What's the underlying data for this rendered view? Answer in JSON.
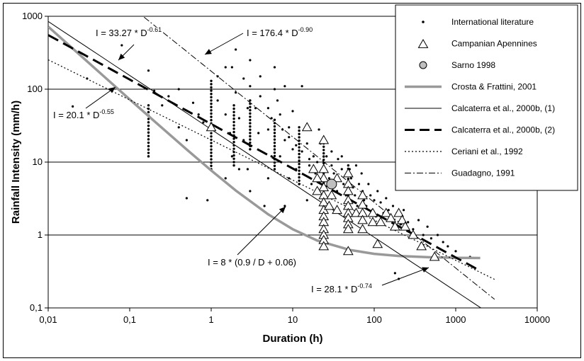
{
  "chart_data": {
    "type": "scatter",
    "x_scale": "log",
    "y_scale": "log",
    "xlabel": "Duration (h)",
    "ylabel": "Rainfall Intensity (mm/h)",
    "xlim": [
      0.01,
      10000
    ],
    "ylim": [
      0.1,
      1000
    ],
    "x_ticks": [
      0.01,
      0.1,
      1,
      10,
      100,
      1000,
      10000
    ],
    "x_tick_labels": [
      "0,01",
      "0,1",
      "1",
      "10",
      "100",
      "1000",
      "10000"
    ],
    "y_ticks": [
      0.1,
      1,
      10,
      100,
      1000
    ],
    "y_tick_labels": [
      "0,1",
      "1",
      "10",
      "100",
      "1000"
    ],
    "grid": "horizontal major lines",
    "legend_position": "top-right",
    "legend": [
      {
        "label": "International literature",
        "marker": "dot"
      },
      {
        "label": "Campanian Apennines",
        "marker": "triangle"
      },
      {
        "label": "Sarno 1998",
        "marker": "circle-gray"
      },
      {
        "label": "Crosta & Frattini, 2001",
        "marker": "line-gray-thick"
      },
      {
        "label": "Calcaterra et al., 2000b, (1)",
        "marker": "line-thin"
      },
      {
        "label": "Calcaterra et al., 2000b, (2)",
        "marker": "line-dashed-thick"
      },
      {
        "label": "Ceriani et al., 1992",
        "marker": "line-dotted"
      },
      {
        "label": "Guadagno, 1991",
        "marker": "line-dashdot"
      }
    ],
    "series": [
      {
        "name": "Crosta & Frattini, 2001",
        "formula": "I = 8 * (0.9 / D + 0.06)",
        "x": [
          0.01,
          0.02,
          0.05,
          0.1,
          0.2,
          0.5,
          1,
          2,
          5,
          10,
          20,
          50,
          100,
          200,
          500,
          1000,
          2000
        ],
        "color": "#999999"
      },
      {
        "name": "Calcaterra et al., 2000b, (1)",
        "formula": "I = 28.1 * D^-0.74",
        "x_range": [
          0.01,
          3000
        ],
        "coef": 28.1,
        "exp": -0.74
      },
      {
        "name": "Calcaterra et al., 2000b, (2)",
        "formula": "I = 33.27 * D^-0.61",
        "x_range": [
          0.01,
          2000
        ],
        "coef": 33.27,
        "exp": -0.61
      },
      {
        "name": "Ceriani et al., 1992",
        "formula": "I = 20.1 * D^-0.55",
        "x_range": [
          0.01,
          3000
        ],
        "coef": 20.1,
        "exp": -0.55
      },
      {
        "name": "Guadagno, 1991",
        "formula": "I = 176.4 * D^-0.90",
        "x_range": [
          0.15,
          3000
        ],
        "coef": 176.4,
        "exp": -0.9
      }
    ],
    "sarno_point": {
      "x": 30,
      "y": 5
    },
    "campanian_points": [
      [
        1,
        30
      ],
      [
        15,
        30
      ],
      [
        24,
        20
      ],
      [
        24,
        8
      ],
      [
        24,
        6
      ],
      [
        24,
        4.5
      ],
      [
        24,
        3.5
      ],
      [
        24,
        2.8
      ],
      [
        24,
        2.2
      ],
      [
        24,
        1.8
      ],
      [
        24,
        1.5
      ],
      [
        24,
        1.2
      ],
      [
        24,
        1
      ],
      [
        24,
        0.85
      ],
      [
        24,
        0.7
      ],
      [
        18,
        8
      ],
      [
        20,
        6
      ],
      [
        20,
        4
      ],
      [
        28,
        2.5
      ],
      [
        30,
        3.5
      ],
      [
        35,
        6
      ],
      [
        35,
        2.2
      ],
      [
        48,
        7
      ],
      [
        48,
        5
      ],
      [
        48,
        4
      ],
      [
        48,
        3
      ],
      [
        48,
        2.5
      ],
      [
        48,
        2
      ],
      [
        48,
        1.7
      ],
      [
        48,
        1.4
      ],
      [
        48,
        1.2
      ],
      [
        48,
        0.6
      ],
      [
        60,
        2
      ],
      [
        72,
        3.5
      ],
      [
        72,
        2.6
      ],
      [
        72,
        2
      ],
      [
        72,
        1.6
      ],
      [
        72,
        1.2
      ],
      [
        96,
        2
      ],
      [
        96,
        1.5
      ],
      [
        110,
        0.75
      ],
      [
        120,
        1.5
      ],
      [
        140,
        2
      ],
      [
        160,
        1.7
      ],
      [
        180,
        1.3
      ],
      [
        200,
        2
      ],
      [
        220,
        1.6
      ],
      [
        240,
        1.3
      ],
      [
        300,
        1
      ],
      [
        380,
        0.7
      ],
      [
        550,
        0.5
      ]
    ],
    "international_columns": [
      {
        "x": 1,
        "ymin": 8,
        "ymax": 130
      },
      {
        "x": 1.9,
        "ymin": 9,
        "ymax": 60
      },
      {
        "x": 3,
        "ymin": 15,
        "ymax": 70
      },
      {
        "x": 6,
        "ymin": 8,
        "ymax": 38
      },
      {
        "x": 12,
        "ymin": 5,
        "ymax": 30
      },
      {
        "x": 24,
        "ymin": 0.8,
        "ymax": 20
      },
      {
        "x": 48,
        "ymin": 1.5,
        "ymax": 9
      },
      {
        "x": 0.17,
        "ymin": 12,
        "ymax": 60
      }
    ],
    "international_points": [
      [
        0.02,
        58
      ],
      [
        0.03,
        140
      ],
      [
        0.05,
        40
      ],
      [
        0.08,
        400
      ],
      [
        0.17,
        180
      ],
      [
        0.17,
        12
      ],
      [
        0.2,
        95
      ],
      [
        0.25,
        60
      ],
      [
        0.3,
        80
      ],
      [
        0.4,
        30
      ],
      [
        0.5,
        20
      ],
      [
        0.5,
        3.2
      ],
      [
        0.6,
        65
      ],
      [
        0.7,
        45
      ],
      [
        0.8,
        35
      ],
      [
        1.2,
        150
      ],
      [
        1.5,
        200
      ],
      [
        1.5,
        45
      ],
      [
        1.7,
        25
      ],
      [
        1.8,
        12
      ],
      [
        2,
        350
      ],
      [
        2,
        90
      ],
      [
        2.2,
        40
      ],
      [
        2.5,
        20
      ],
      [
        2.5,
        140
      ],
      [
        2.8,
        8
      ],
      [
        3,
        110
      ],
      [
        3.5,
        55
      ],
      [
        3.8,
        25
      ],
      [
        4,
        80
      ],
      [
        4.5,
        2.5
      ],
      [
        5,
        55
      ],
      [
        5,
        28
      ],
      [
        5.5,
        12
      ],
      [
        6,
        100
      ],
      [
        6.5,
        70
      ],
      [
        7,
        12
      ],
      [
        7,
        45
      ],
      [
        8,
        20
      ],
      [
        8,
        110
      ],
      [
        9,
        6
      ],
      [
        9,
        30
      ],
      [
        10,
        15
      ],
      [
        10,
        50
      ],
      [
        11,
        8
      ],
      [
        13,
        110
      ],
      [
        15,
        18
      ],
      [
        15,
        3
      ],
      [
        16,
        9
      ],
      [
        17,
        5
      ],
      [
        18,
        12
      ],
      [
        19,
        7
      ],
      [
        20,
        4
      ],
      [
        21,
        28
      ],
      [
        22,
        18
      ],
      [
        26,
        12
      ],
      [
        28,
        6
      ],
      [
        30,
        9
      ],
      [
        32,
        7
      ],
      [
        35,
        4
      ],
      [
        36,
        11
      ],
      [
        40,
        8
      ],
      [
        42,
        5
      ],
      [
        45,
        3.5
      ],
      [
        50,
        8
      ],
      [
        52,
        6
      ],
      [
        55,
        4.5
      ],
      [
        58,
        3.5
      ],
      [
        60,
        9
      ],
      [
        62,
        2.5
      ],
      [
        65,
        5
      ],
      [
        70,
        7
      ],
      [
        72,
        4
      ],
      [
        75,
        3
      ],
      [
        80,
        2.5
      ],
      [
        85,
        5
      ],
      [
        90,
        3.5
      ],
      [
        95,
        2.2
      ],
      [
        100,
        3
      ],
      [
        105,
        1.8
      ],
      [
        110,
        4
      ],
      [
        120,
        2.8
      ],
      [
        130,
        2
      ],
      [
        140,
        3.2
      ],
      [
        150,
        2.2
      ],
      [
        160,
        1.6
      ],
      [
        170,
        2.5
      ],
      [
        190,
        2
      ],
      [
        210,
        1.4
      ],
      [
        230,
        2.2
      ],
      [
        260,
        1.5
      ],
      [
        300,
        1.2
      ],
      [
        350,
        1.6
      ],
      [
        400,
        1
      ],
      [
        450,
        1.3
      ],
      [
        500,
        0.9
      ],
      [
        600,
        1
      ],
      [
        700,
        0.8
      ],
      [
        800,
        0.7
      ],
      [
        1000,
        0.6
      ],
      [
        1500,
        0.5
      ],
      [
        180,
        0.3
      ],
      [
        200,
        0.25
      ],
      [
        8,
        2.5
      ],
      [
        5,
        6
      ],
      [
        3,
        4
      ],
      [
        2.2,
        8
      ],
      [
        1.5,
        6
      ],
      [
        0.9,
        3
      ],
      [
        1.8,
        200
      ],
      [
        3,
        250
      ],
      [
        4,
        150
      ],
      [
        6,
        200
      ],
      [
        0.4,
        100
      ],
      [
        1.2,
        70
      ],
      [
        2.8,
        55
      ],
      [
        5.5,
        40
      ],
      [
        7.5,
        28
      ],
      [
        9,
        22
      ],
      [
        11,
        17
      ],
      [
        13,
        14
      ],
      [
        16,
        11
      ],
      [
        20,
        10
      ],
      [
        24,
        12
      ],
      [
        30,
        14
      ],
      [
        40,
        12
      ]
    ],
    "annotations": [
      {
        "text": "I = 33.27 * D",
        "sup": "-0.61"
      },
      {
        "text": "I = 176.4 * D",
        "sup": "-0.90"
      },
      {
        "text": "I = 20.1 * D",
        "sup": "-0.55"
      },
      {
        "text": "I = 8 * (0.9 / D + 0.06)",
        "sup": ""
      },
      {
        "text": "I = 28.1 * D",
        "sup": "-0.74"
      }
    ]
  }
}
